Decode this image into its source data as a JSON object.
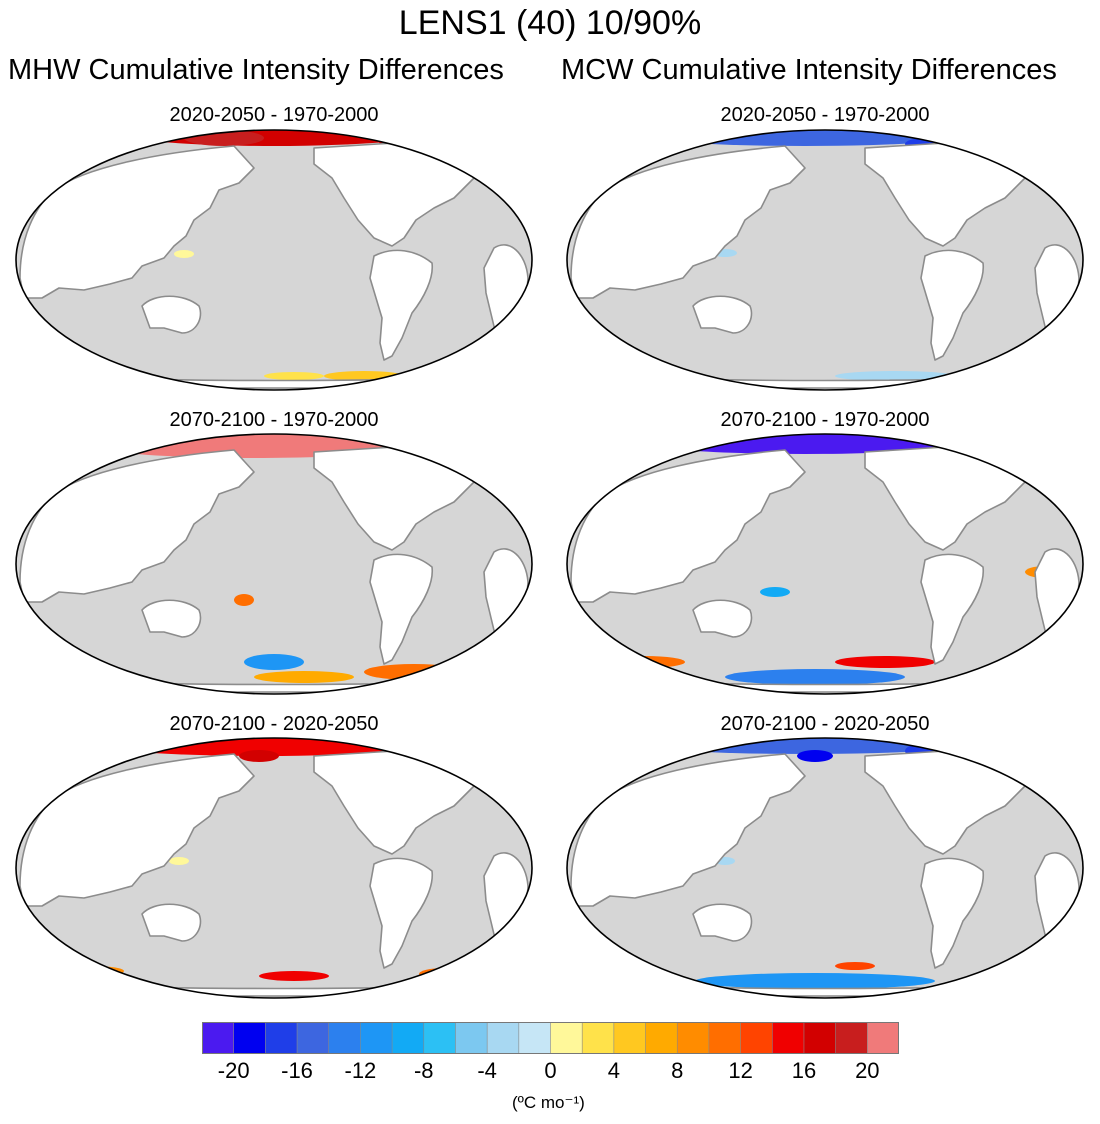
{
  "figure": {
    "title": "LENS1 (40) 10/90%",
    "columns": [
      "MHW Cumulative Intensity Differences",
      "MCW Cumulative Intensity Differences"
    ]
  },
  "panels": [
    {
      "title": "2020-2050 - 1970-2000",
      "column": "MHW"
    },
    {
      "title": "2020-2050 - 1970-2000",
      "column": "MCW"
    },
    {
      "title": "2070-2100 - 1970-2000",
      "column": "MHW"
    },
    {
      "title": "2070-2100 - 1970-2000",
      "column": "MCW"
    },
    {
      "title": "2070-2100 - 2020-2050",
      "column": "MHW"
    },
    {
      "title": "2070-2100 - 2020-2050",
      "column": "MCW"
    }
  ],
  "colorbar": {
    "colors": [
      "#4b1af0",
      "#0000f0",
      "#1f3ee8",
      "#3d66e0",
      "#2c80ee",
      "#1e96f5",
      "#12aaf5",
      "#2cc0f4",
      "#7cc8f0",
      "#a8d8f2",
      "#c6e6f6",
      "#fff89a",
      "#ffe24a",
      "#ffc820",
      "#ffaa00",
      "#ff8c00",
      "#ff6e00",
      "#ff4400",
      "#f00000",
      "#d20000",
      "#c81e1e",
      "#f07a7a"
    ],
    "tick_labels": [
      "-20",
      "-16",
      "-12",
      "-8",
      "-4",
      "0",
      "4",
      "8",
      "12",
      "16",
      "20"
    ],
    "units": "(ºC mo⁻¹)"
  },
  "colors": {
    "ocean": "#d6d6d6",
    "land": "#ffffff",
    "coast": "#8c8c8c"
  }
}
